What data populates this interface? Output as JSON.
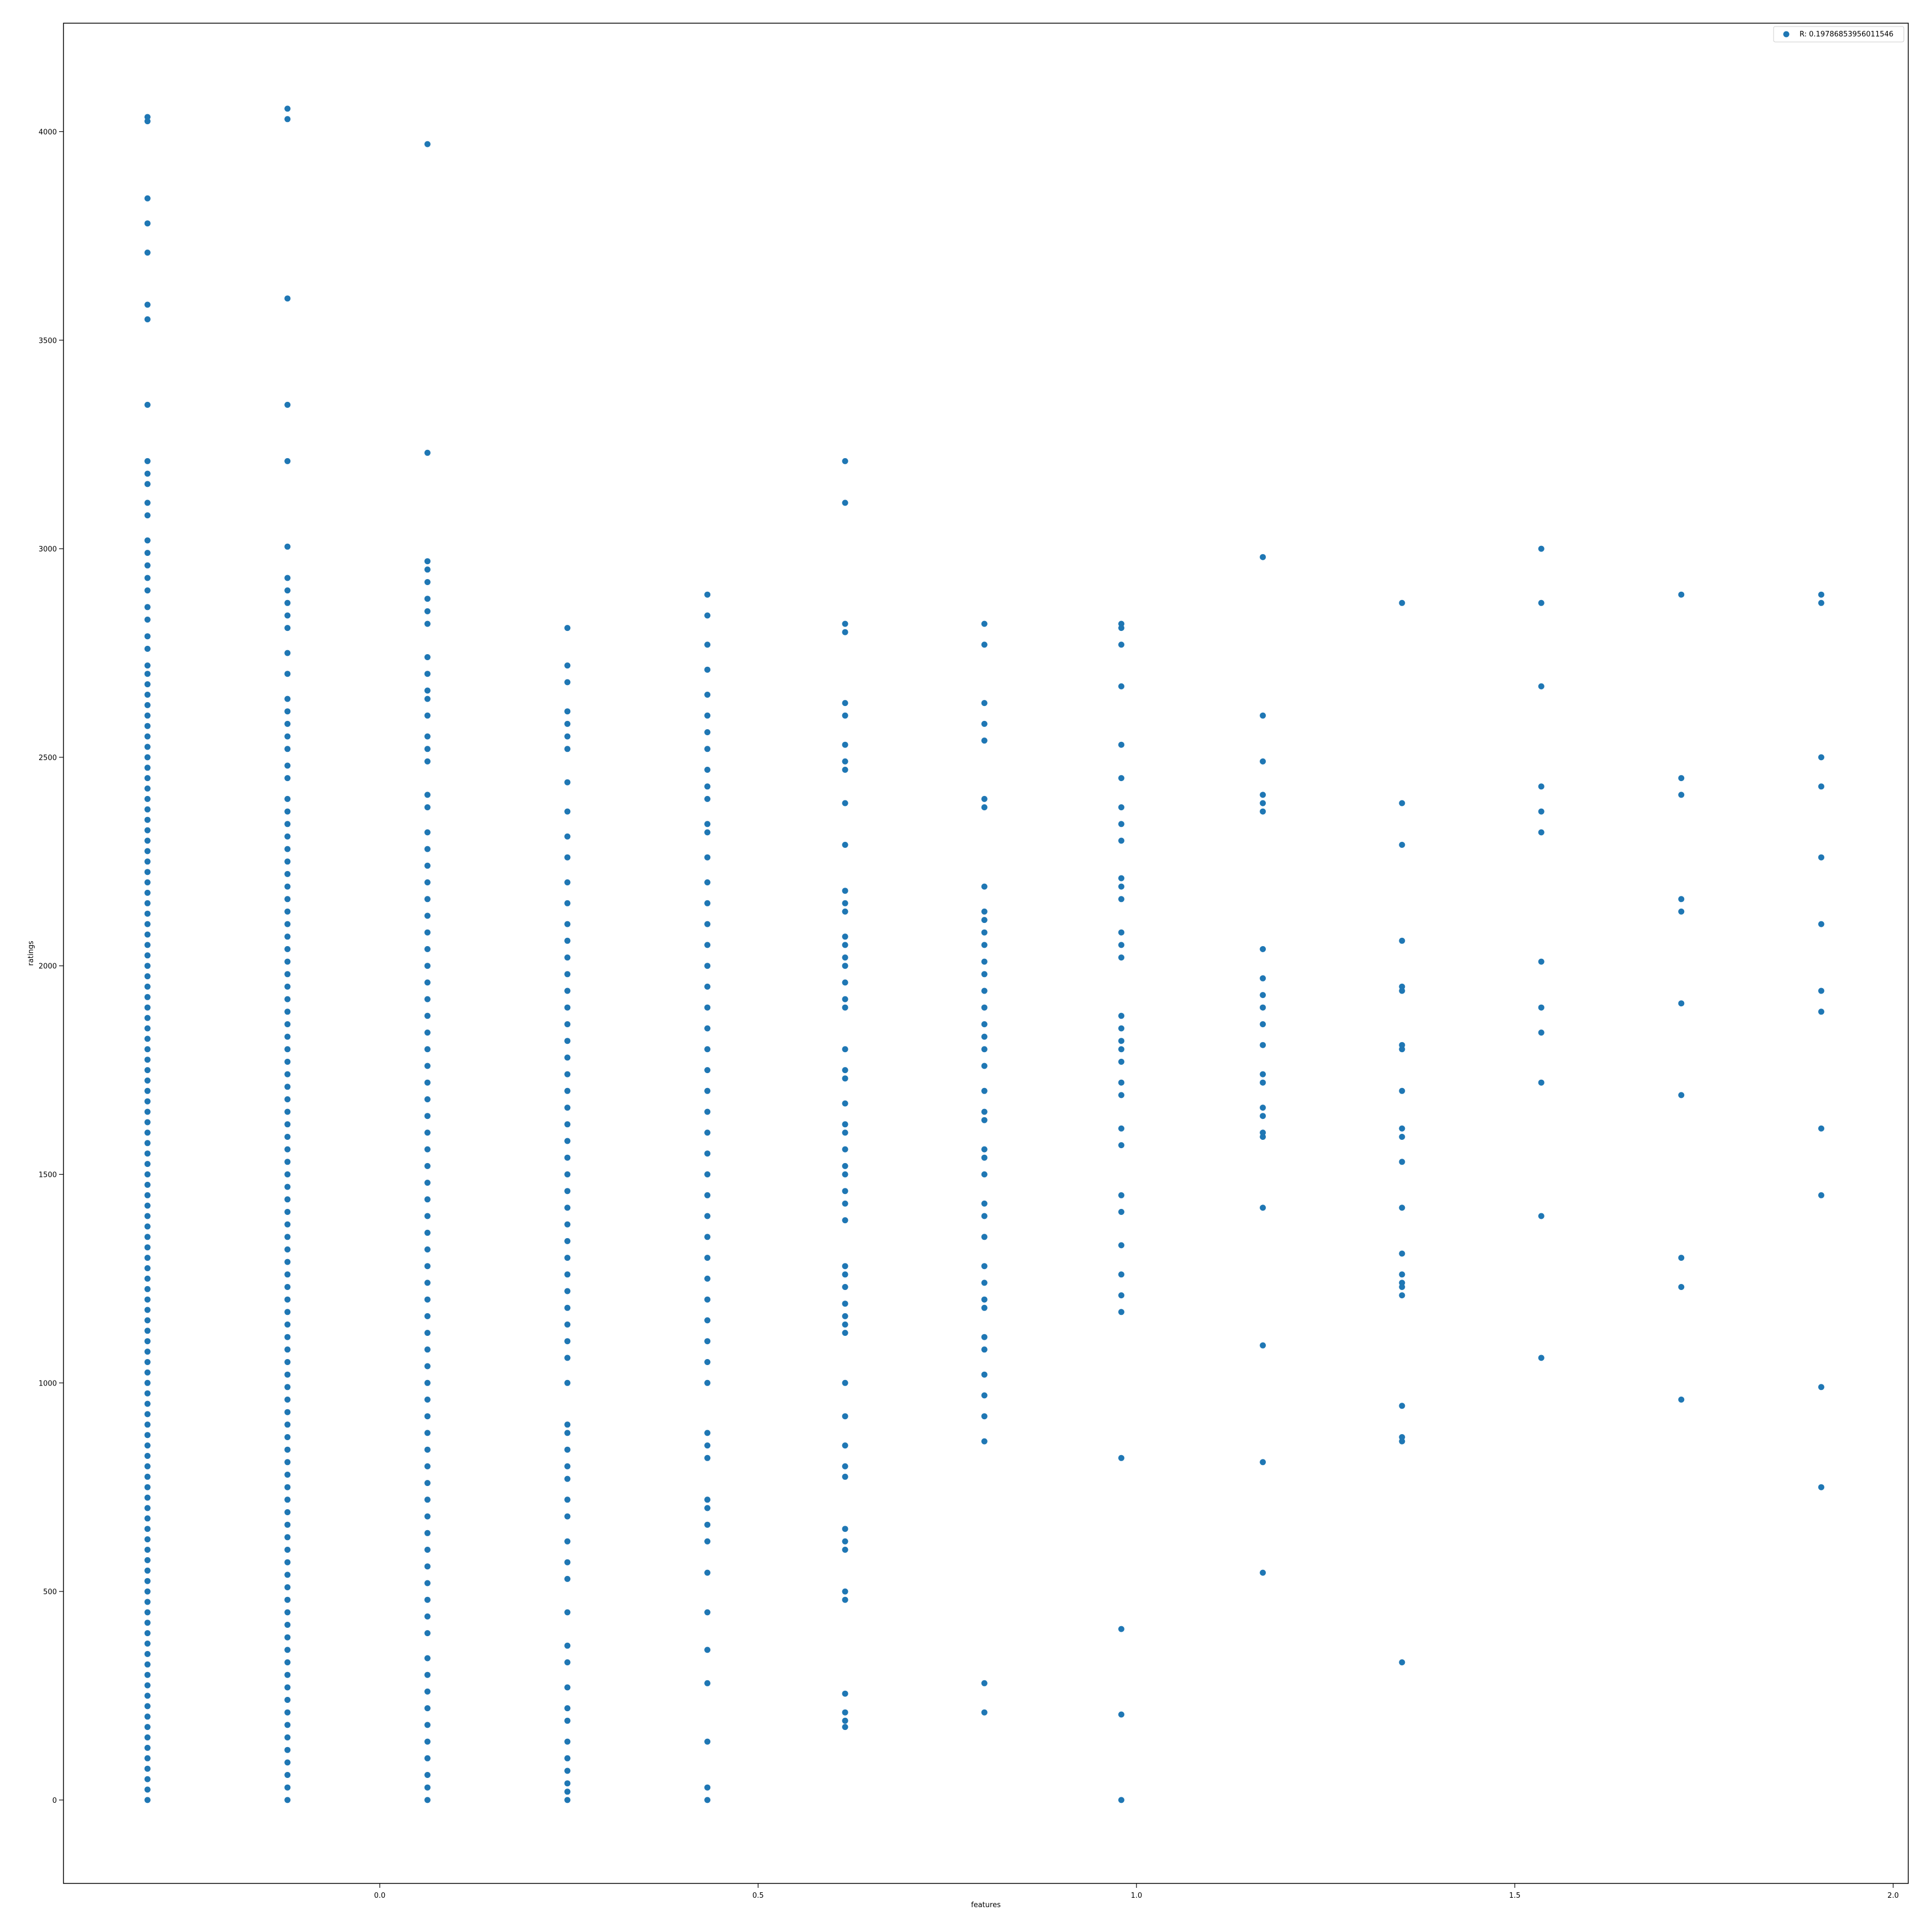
{
  "chart_data": {
    "type": "scatter",
    "title": "",
    "xlabel": "features",
    "ylabel": "ratings",
    "xlim": [
      -0.418,
      2.02
    ],
    "ylim": [
      -200,
      4260
    ],
    "xticks": [
      0.0,
      0.5,
      1.0,
      1.5,
      2.0
    ],
    "xtick_labels": [
      "0.0",
      "0.5",
      "1.0",
      "1.5",
      "2.0"
    ],
    "yticks": [
      0,
      500,
      1000,
      1500,
      2000,
      2500,
      3000,
      3500,
      4000
    ],
    "ytick_labels": [
      "0",
      "500",
      "1000",
      "1500",
      "2000",
      "2500",
      "3000",
      "3500",
      "4000"
    ],
    "grid": false,
    "legend_position": "top-right",
    "marker_color": "#1f77b4",
    "series": [
      {
        "name": "R: 0.19786853956011546",
        "columns": [
          {
            "x": -0.307,
            "y": [
              0,
              25,
              50,
              75,
              100,
              125,
              150,
              175,
              200,
              225,
              250,
              275,
              300,
              325,
              350,
              375,
              400,
              425,
              450,
              475,
              500,
              525,
              550,
              575,
              600,
              625,
              650,
              675,
              700,
              725,
              750,
              775,
              800,
              825,
              850,
              875,
              900,
              925,
              950,
              975,
              1000,
              1025,
              1050,
              1075,
              1100,
              1125,
              1150,
              1175,
              1200,
              1225,
              1250,
              1275,
              1300,
              1325,
              1350,
              1375,
              1400,
              1425,
              1450,
              1475,
              1500,
              1525,
              1550,
              1575,
              1600,
              1625,
              1650,
              1675,
              1700,
              1725,
              1750,
              1775,
              1800,
              1825,
              1850,
              1875,
              1900,
              1925,
              1950,
              1975,
              2000,
              2025,
              2050,
              2075,
              2100,
              2125,
              2150,
              2175,
              2200,
              2225,
              2250,
              2275,
              2300,
              2325,
              2350,
              2375,
              2400,
              2425,
              2450,
              2475,
              2500,
              2525,
              2550,
              2575,
              2600,
              2625,
              2650,
              2675,
              2700,
              2720,
              2760,
              2790,
              2830,
              2860,
              2900,
              2930,
              2960,
              2990,
              3020,
              3080,
              3110,
              3155,
              3180,
              3210,
              3345,
              3550,
              3585,
              3710,
              3780,
              3840,
              4025,
              4035
            ]
          },
          {
            "x": -0.122,
            "y": [
              0,
              30,
              60,
              90,
              120,
              150,
              180,
              210,
              240,
              270,
              300,
              330,
              360,
              390,
              420,
              450,
              480,
              510,
              540,
              570,
              600,
              630,
              660,
              690,
              720,
              750,
              780,
              810,
              840,
              870,
              900,
              930,
              960,
              990,
              1020,
              1050,
              1080,
              1110,
              1140,
              1170,
              1200,
              1230,
              1260,
              1290,
              1320,
              1350,
              1380,
              1410,
              1440,
              1470,
              1500,
              1530,
              1560,
              1590,
              1620,
              1650,
              1680,
              1710,
              1740,
              1770,
              1800,
              1830,
              1860,
              1890,
              1920,
              1950,
              1980,
              2010,
              2040,
              2070,
              2100,
              2130,
              2160,
              2190,
              2220,
              2250,
              2280,
              2310,
              2340,
              2370,
              2400,
              2450,
              2480,
              2520,
              2550,
              2580,
              2610,
              2640,
              2700,
              2750,
              2810,
              2840,
              2870,
              2900,
              2930,
              3005,
              3210,
              3345,
              3600,
              4030,
              4055
            ]
          },
          {
            "x": 0.063,
            "y": [
              0,
              30,
              60,
              100,
              140,
              180,
              220,
              260,
              300,
              340,
              400,
              440,
              480,
              520,
              560,
              600,
              640,
              680,
              720,
              760,
              800,
              840,
              880,
              920,
              960,
              1000,
              1040,
              1080,
              1120,
              1160,
              1200,
              1240,
              1280,
              1320,
              1360,
              1400,
              1440,
              1480,
              1520,
              1560,
              1600,
              1640,
              1680,
              1720,
              1760,
              1800,
              1840,
              1880,
              1920,
              1960,
              2000,
              2040,
              2080,
              2120,
              2160,
              2200,
              2240,
              2280,
              2320,
              2380,
              2410,
              2490,
              2520,
              2550,
              2600,
              2640,
              2660,
              2700,
              2740,
              2820,
              2850,
              2880,
              2920,
              2950,
              2970,
              3230,
              3970
            ]
          },
          {
            "x": 0.248,
            "y": [
              0,
              20,
              40,
              70,
              100,
              140,
              190,
              220,
              270,
              330,
              370,
              450,
              530,
              570,
              620,
              680,
              720,
              770,
              800,
              840,
              880,
              900,
              1000,
              1060,
              1100,
              1140,
              1180,
              1220,
              1260,
              1300,
              1340,
              1380,
              1420,
              1460,
              1500,
              1540,
              1580,
              1620,
              1660,
              1700,
              1740,
              1780,
              1820,
              1860,
              1900,
              1940,
              1980,
              2020,
              2060,
              2100,
              2150,
              2200,
              2260,
              2310,
              2370,
              2440,
              2520,
              2550,
              2580,
              2610,
              2680,
              2720,
              2810
            ]
          },
          {
            "x": 0.433,
            "y": [
              0,
              30,
              140,
              280,
              360,
              450,
              545,
              620,
              660,
              700,
              720,
              820,
              850,
              880,
              1000,
              1050,
              1100,
              1150,
              1200,
              1250,
              1300,
              1350,
              1400,
              1450,
              1500,
              1550,
              1600,
              1650,
              1700,
              1750,
              1800,
              1850,
              1900,
              1950,
              2000,
              2050,
              2100,
              2150,
              2200,
              2260,
              2320,
              2340,
              2400,
              2430,
              2470,
              2520,
              2560,
              2600,
              2650,
              2710,
              2770,
              2840,
              2890
            ]
          },
          {
            "x": 0.615,
            "y": [
              175,
              190,
              210,
              255,
              480,
              500,
              600,
              620,
              650,
              775,
              800,
              850,
              920,
              1000,
              1120,
              1140,
              1160,
              1190,
              1230,
              1260,
              1280,
              1390,
              1430,
              1460,
              1500,
              1520,
              1560,
              1600,
              1620,
              1670,
              1730,
              1750,
              1800,
              1900,
              1920,
              1960,
              2000,
              2020,
              2050,
              2070,
              2130,
              2150,
              2180,
              2290,
              2390,
              2470,
              2490,
              2530,
              2600,
              2630,
              2800,
              2820,
              3110,
              3210
            ]
          },
          {
            "x": 0.799,
            "y": [
              210,
              280,
              860,
              920,
              970,
              1020,
              1080,
              1110,
              1180,
              1200,
              1240,
              1280,
              1350,
              1400,
              1430,
              1500,
              1540,
              1560,
              1630,
              1650,
              1700,
              1760,
              1800,
              1830,
              1860,
              1900,
              1940,
              1980,
              2010,
              2050,
              2080,
              2110,
              2130,
              2190,
              2380,
              2400,
              2540,
              2580,
              2630,
              2770,
              2820
            ]
          },
          {
            "x": 0.98,
            "y": [
              0,
              205,
              410,
              820,
              1170,
              1210,
              1260,
              1330,
              1410,
              1450,
              1570,
              1610,
              1690,
              1720,
              1770,
              1800,
              1820,
              1850,
              1880,
              2020,
              2050,
              2080,
              2160,
              2190,
              2210,
              2300,
              2340,
              2380,
              2450,
              2530,
              2670,
              2770,
              2810,
              2820
            ]
          },
          {
            "x": 1.167,
            "y": [
              545,
              810,
              1090,
              1420,
              1590,
              1600,
              1640,
              1660,
              1720,
              1740,
              1810,
              1860,
              1900,
              1930,
              1970,
              2040,
              2370,
              2390,
              2410,
              2490,
              2600,
              2980
            ]
          },
          {
            "x": 1.351,
            "y": [
              330,
              860,
              870,
              945,
              1210,
              1230,
              1240,
              1260,
              1310,
              1420,
              1530,
              1590,
              1610,
              1700,
              1800,
              1810,
              1940,
              1950,
              2060,
              2290,
              2390,
              2870
            ]
          },
          {
            "x": 1.535,
            "y": [
              1060,
              1400,
              1720,
              1840,
              1900,
              2010,
              2320,
              2370,
              2430,
              2670,
              2870,
              3000
            ]
          },
          {
            "x": 1.72,
            "y": [
              960,
              1230,
              1300,
              1690,
              1910,
              2130,
              2160,
              2410,
              2450,
              2890
            ]
          },
          {
            "x": 1.905,
            "y": [
              750,
              990,
              1450,
              1610,
              1890,
              1940,
              2100,
              2260,
              2430,
              2500,
              2870,
              2890
            ]
          }
        ]
      }
    ]
  }
}
